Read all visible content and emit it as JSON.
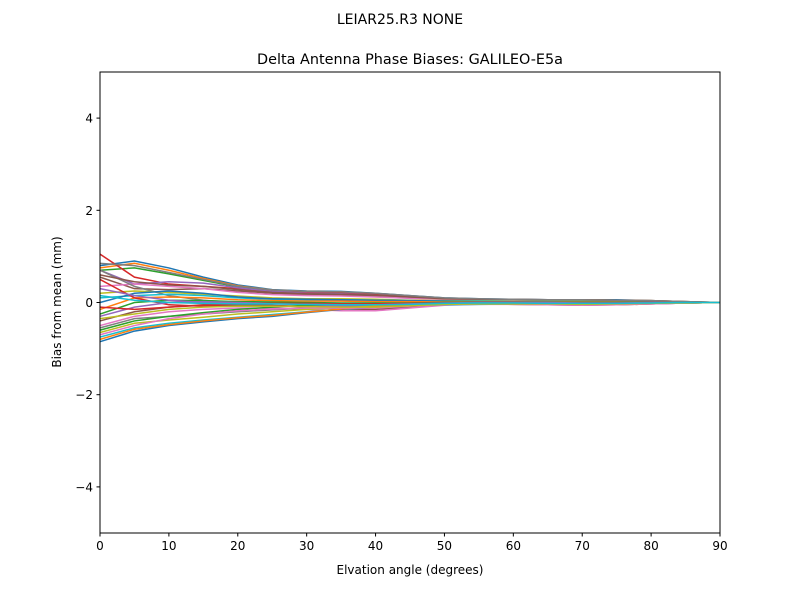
{
  "suptitle": "LEIAR25.R3      NONE",
  "chart_data": {
    "type": "line",
    "title": "Delta Antenna Phase Biases: GALILEO-E5a",
    "xlabel": "Elvation angle (degrees)",
    "ylabel": "Bias from mean (mm)",
    "xlim": [
      0,
      90
    ],
    "ylim": [
      -5,
      5
    ],
    "xticks": [
      "0",
      "10",
      "20",
      "30",
      "40",
      "50",
      "60",
      "70",
      "80",
      "90"
    ],
    "yticks": [
      "−4",
      "−2",
      "0",
      "2",
      "4"
    ],
    "grid": false,
    "colors": [
      "#1f77b4",
      "#ff7f0e",
      "#2ca02c",
      "#d62728",
      "#9467bd",
      "#8c564b",
      "#e377c2",
      "#7f7f7f",
      "#bcbd22",
      "#17becf"
    ],
    "x": [
      0,
      5,
      10,
      15,
      20,
      25,
      30,
      35,
      40,
      45,
      50,
      55,
      60,
      65,
      70,
      75,
      80,
      85,
      90
    ],
    "series": [
      {
        "values": [
          0.8,
          0.9,
          0.75,
          0.55,
          0.38,
          0.28,
          0.25,
          0.24,
          0.2,
          0.15,
          0.1,
          0.08,
          0.07,
          0.06,
          0.06,
          0.06,
          0.04,
          0.02,
          0
        ]
      },
      {
        "values": [
          0.75,
          0.85,
          0.7,
          0.52,
          0.36,
          0.27,
          0.24,
          0.23,
          0.19,
          0.14,
          0.09,
          0.07,
          0.06,
          0.06,
          0.06,
          0.05,
          0.04,
          0.02,
          0
        ]
      },
      {
        "values": [
          0.7,
          0.75,
          0.62,
          0.48,
          0.34,
          0.26,
          0.23,
          0.22,
          0.19,
          0.14,
          0.09,
          0.07,
          0.06,
          0.05,
          0.05,
          0.05,
          0.03,
          0.01,
          0
        ]
      },
      {
        "values": [
          1.05,
          0.55,
          0.4,
          0.35,
          0.3,
          0.25,
          0.22,
          0.21,
          0.18,
          0.13,
          0.08,
          0.07,
          0.06,
          0.06,
          0.05,
          0.05,
          0.03,
          0.01,
          0
        ]
      },
      {
        "values": [
          0.7,
          0.4,
          0.45,
          0.42,
          0.32,
          0.24,
          0.2,
          0.19,
          0.16,
          0.12,
          0.08,
          0.06,
          0.06,
          0.05,
          0.05,
          0.04,
          0.03,
          0.01,
          0
        ]
      },
      {
        "values": [
          0.55,
          0.3,
          0.28,
          0.3,
          0.25,
          0.2,
          0.17,
          0.16,
          0.14,
          0.1,
          0.07,
          0.06,
          0.05,
          0.05,
          0.04,
          0.04,
          0.03,
          0.01,
          0
        ]
      },
      {
        "values": [
          0.35,
          0.4,
          0.35,
          0.3,
          0.22,
          0.17,
          0.15,
          0.14,
          0.12,
          0.09,
          0.07,
          0.06,
          0.05,
          0.05,
          0.04,
          0.04,
          0.02,
          0.01,
          0
        ]
      },
      {
        "values": [
          0.7,
          0.35,
          0.15,
          0.05,
          0.0,
          -0.02,
          -0.03,
          -0.03,
          -0.02,
          -0.01,
          0.0,
          0.01,
          0.01,
          0.01,
          0.01,
          0.01,
          0.01,
          0,
          0
        ]
      },
      {
        "values": [
          0.2,
          0.25,
          0.22,
          0.18,
          0.14,
          0.1,
          0.08,
          0.08,
          0.07,
          0.05,
          0.04,
          0.04,
          0.03,
          0.03,
          0.03,
          0.03,
          0.02,
          0.01,
          0
        ]
      },
      {
        "values": [
          0.1,
          0.15,
          0.18,
          0.15,
          0.1,
          0.07,
          0.06,
          0.06,
          0.05,
          0.04,
          0.03,
          0.03,
          0.02,
          0.02,
          0.02,
          0.02,
          0.01,
          0,
          0
        ]
      },
      {
        "values": [
          0.0,
          0.2,
          0.25,
          0.2,
          0.12,
          0.08,
          0.07,
          0.06,
          0.05,
          0.04,
          0.03,
          0.02,
          0.02,
          0.02,
          0.02,
          0.02,
          0.01,
          0,
          0
        ]
      },
      {
        "values": [
          -0.15,
          0.1,
          0.12,
          0.1,
          0.06,
          0.04,
          0.03,
          0.03,
          0.02,
          0.02,
          0.01,
          0.01,
          0.01,
          0.01,
          0.01,
          0.01,
          0,
          0,
          0
        ]
      },
      {
        "values": [
          -0.25,
          0.0,
          0.05,
          0.04,
          0.02,
          0.01,
          0.0,
          -0.01,
          -0.01,
          -0.01,
          0.0,
          0.0,
          0.0,
          0.0,
          -0.01,
          -0.01,
          0,
          0,
          0
        ]
      },
      {
        "values": [
          0.5,
          0.1,
          -0.05,
          -0.08,
          -0.08,
          -0.07,
          -0.08,
          -0.1,
          -0.1,
          -0.07,
          -0.04,
          -0.03,
          -0.03,
          -0.03,
          -0.04,
          -0.04,
          -0.02,
          -0.01,
          0
        ]
      },
      {
        "values": [
          -0.3,
          -0.1,
          0.0,
          0.02,
          0.0,
          -0.02,
          -0.05,
          -0.08,
          -0.08,
          -0.06,
          -0.03,
          -0.02,
          -0.03,
          -0.04,
          -0.05,
          -0.05,
          -0.03,
          -0.01,
          0
        ]
      },
      {
        "values": [
          -0.4,
          -0.2,
          -0.1,
          -0.05,
          -0.05,
          -0.06,
          -0.1,
          -0.14,
          -0.15,
          -0.1,
          -0.05,
          -0.03,
          -0.04,
          -0.05,
          -0.06,
          -0.05,
          -0.03,
          -0.01,
          0
        ]
      },
      {
        "values": [
          -0.5,
          -0.3,
          -0.2,
          -0.15,
          -0.12,
          -0.12,
          -0.15,
          -0.18,
          -0.18,
          -0.12,
          -0.06,
          -0.04,
          -0.04,
          -0.05,
          -0.06,
          -0.05,
          -0.03,
          -0.01,
          0
        ]
      },
      {
        "values": [
          -0.55,
          -0.35,
          -0.3,
          -0.25,
          -0.2,
          -0.16,
          -0.12,
          -0.1,
          -0.08,
          -0.06,
          -0.04,
          -0.03,
          -0.03,
          -0.03,
          -0.03,
          -0.03,
          -0.02,
          -0.01,
          0
        ]
      },
      {
        "values": [
          -0.65,
          -0.45,
          -0.38,
          -0.32,
          -0.25,
          -0.2,
          -0.15,
          -0.11,
          -0.08,
          -0.06,
          -0.04,
          -0.03,
          -0.03,
          -0.03,
          -0.03,
          -0.03,
          -0.02,
          -0.01,
          0
        ]
      },
      {
        "values": [
          -0.75,
          -0.55,
          -0.45,
          -0.38,
          -0.32,
          -0.26,
          -0.2,
          -0.14,
          -0.1,
          -0.07,
          -0.05,
          -0.04,
          -0.03,
          -0.03,
          -0.03,
          -0.02,
          -0.02,
          -0.01,
          0
        ]
      },
      {
        "values": [
          -0.85,
          -0.62,
          -0.5,
          -0.42,
          -0.35,
          -0.3,
          -0.22,
          -0.15,
          -0.1,
          -0.06,
          -0.04,
          -0.02,
          -0.02,
          -0.02,
          -0.02,
          -0.02,
          -0.01,
          0,
          0
        ]
      },
      {
        "values": [
          -0.8,
          -0.58,
          -0.48,
          -0.4,
          -0.33,
          -0.28,
          -0.21,
          -0.14,
          -0.09,
          -0.06,
          -0.04,
          -0.02,
          -0.02,
          -0.02,
          -0.02,
          -0.02,
          -0.01,
          0,
          0
        ]
      },
      {
        "values": [
          -0.6,
          -0.4,
          -0.3,
          -0.22,
          -0.15,
          -0.1,
          -0.06,
          -0.04,
          -0.03,
          -0.02,
          -0.01,
          0.0,
          0.0,
          0.0,
          0.0,
          0.0,
          0,
          0,
          0
        ]
      },
      {
        "values": [
          -0.1,
          -0.15,
          -0.1,
          -0.06,
          -0.03,
          -0.02,
          -0.02,
          -0.03,
          -0.03,
          -0.02,
          -0.01,
          0.0,
          0.0,
          -0.01,
          -0.01,
          -0.01,
          0,
          0,
          0
        ]
      },
      {
        "values": [
          0.3,
          0.15,
          0.05,
          0.0,
          -0.02,
          -0.03,
          -0.04,
          -0.05,
          -0.05,
          -0.03,
          -0.01,
          0.0,
          0.0,
          0.0,
          -0.01,
          -0.01,
          0,
          0,
          0
        ]
      },
      {
        "values": [
          0.6,
          0.45,
          0.38,
          0.35,
          0.28,
          0.22,
          0.19,
          0.18,
          0.16,
          0.12,
          0.08,
          0.07,
          0.07,
          0.06,
          0.06,
          0.05,
          0.04,
          0.02,
          0
        ]
      },
      {
        "values": [
          -0.7,
          -0.5,
          -0.35,
          -0.25,
          -0.18,
          -0.14,
          -0.12,
          -0.12,
          -0.12,
          -0.08,
          -0.04,
          -0.03,
          -0.03,
          -0.04,
          -0.05,
          -0.04,
          -0.03,
          -0.01,
          0
        ]
      },
      {
        "values": [
          0.85,
          0.8,
          0.65,
          0.5,
          0.35,
          0.27,
          0.24,
          0.23,
          0.2,
          0.15,
          0.1,
          0.08,
          0.07,
          0.06,
          0.06,
          0.05,
          0.04,
          0.02,
          0
        ]
      },
      {
        "values": [
          -0.35,
          -0.25,
          -0.15,
          -0.1,
          -0.08,
          -0.08,
          -0.09,
          -0.1,
          -0.1,
          -0.07,
          -0.04,
          -0.03,
          -0.03,
          -0.03,
          -0.04,
          -0.03,
          -0.02,
          -0.01,
          0
        ]
      },
      {
        "values": [
          0.15,
          0.05,
          0.0,
          -0.02,
          -0.03,
          -0.03,
          -0.04,
          -0.05,
          -0.05,
          -0.04,
          -0.02,
          -0.01,
          -0.01,
          -0.02,
          -0.02,
          -0.02,
          -0.01,
          0,
          0
        ]
      }
    ]
  }
}
